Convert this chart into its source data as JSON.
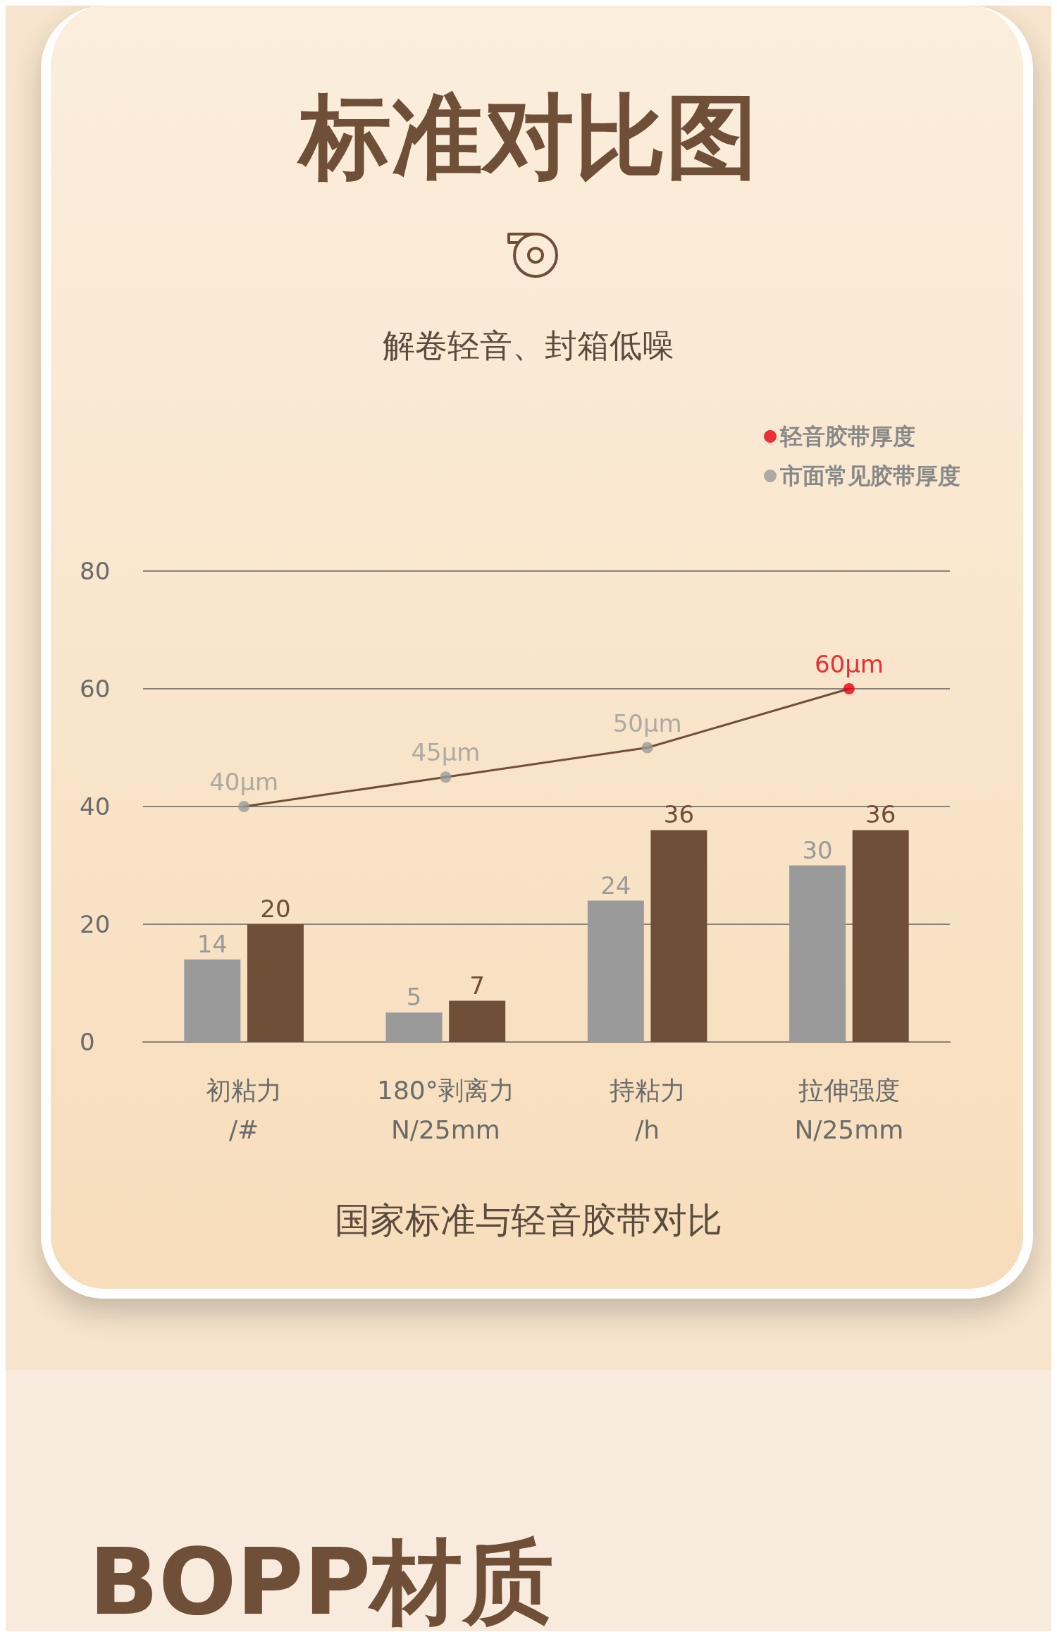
{
  "chart_data": {
    "type": "bar",
    "title": "标准对比图",
    "subtitle": "解卷轻音、封箱低噪",
    "categories": [
      "初粘力\n/#",
      "180°剥离力\nN/25mm",
      "持粘力\n/h",
      "拉伸强度\nN/25mm"
    ],
    "series": [
      {
        "color": "#9b9a9a",
        "values": [
          14,
          5,
          24,
          30
        ]
      },
      {
        "color": "#6f4f37",
        "values": [
          20,
          7,
          36,
          36
        ]
      },
      {
        "type": "line",
        "color": "#6f4f37",
        "marker": "none",
        "values": [
          40,
          45,
          50,
          60
        ],
        "value_labels": [
          null,
          null,
          null,
          null
        ]
      },
      {
        "type": "scatter",
        "name": "市面常见胶带厚度",
        "color": "#9b9a9a",
        "values": [
          40,
          45,
          50,
          null
        ],
        "value_labels": [
          "40μm",
          "45μm",
          "50μm",
          null
        ]
      },
      {
        "type": "scatter",
        "name": "轻音胶带厚度",
        "color": "#e60012",
        "values": [
          null,
          null,
          null,
          60
        ],
        "value_labels": [
          null,
          null,
          null,
          "60μm"
        ]
      }
    ],
    "ylim": [
      0,
      80
    ],
    "yticks": [
      0,
      20,
      40,
      60,
      80
    ],
    "grid": "y",
    "legend": "top right",
    "marker": "circle",
    "data_labels": true,
    "annotations": [
      "国家标准与轻音胶带对比",
      "BOPP材质"
    ]
  }
}
